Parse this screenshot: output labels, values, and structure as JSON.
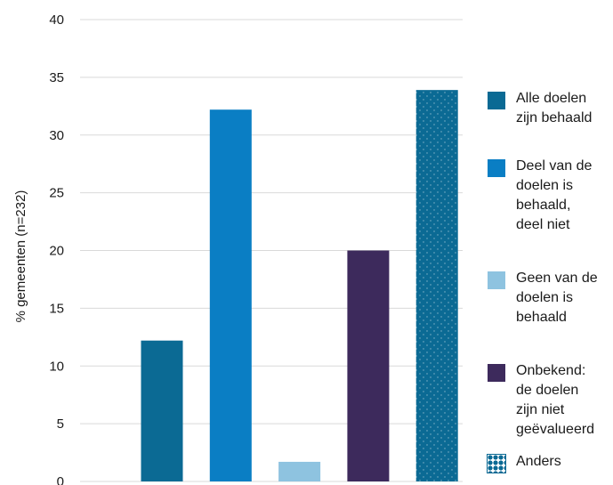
{
  "chart_data": {
    "type": "bar",
    "title": "",
    "xlabel": "",
    "ylabel": "% gemeenten (n=232)",
    "ylim": [
      0,
      40
    ],
    "yticks": [
      0,
      5,
      10,
      15,
      20,
      25,
      30,
      35,
      40
    ],
    "grid": true,
    "legend_position": "right",
    "categories": [
      "Alle doelen zijn behaald",
      "Deel van de doelen is behaald, deel niet",
      "Geen van de doelen is behaald",
      "Onbekend: de doelen zijn niet geëvalueerd",
      "Anders"
    ],
    "values": [
      12.2,
      32.2,
      1.7,
      20.0,
      33.9
    ],
    "colors": [
      "#0b6a94",
      "#0a7ec4",
      "#8ec3e0",
      "#3d2a5c",
      "#0b6a94"
    ],
    "patterns": [
      "solid",
      "solid",
      "solid",
      "solid",
      "scale-pattern"
    ],
    "legend": [
      {
        "lines": [
          "Alle doelen",
          "zijn behaald"
        ]
      },
      {
        "lines": [
          "Deel van de",
          "doelen is",
          "behaald,",
          "deel niet"
        ]
      },
      {
        "lines": [
          "Geen van de",
          "doelen is",
          "behaald"
        ]
      },
      {
        "lines": [
          "Onbekend:",
          "de doelen",
          "zijn niet",
          "geëvalueerd"
        ]
      },
      {
        "lines": [
          "Anders"
        ]
      }
    ]
  }
}
